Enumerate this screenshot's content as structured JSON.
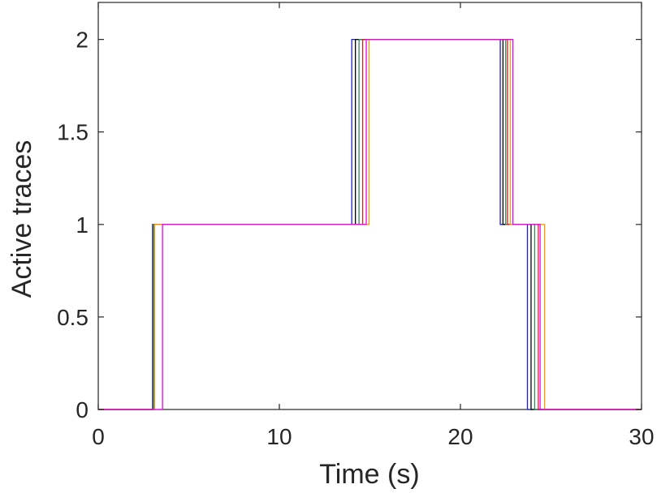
{
  "chart_data": {
    "type": "line",
    "title": "",
    "xlabel": "Time (s)",
    "ylabel": "Active traces",
    "xlim": [
      0,
      30
    ],
    "ylim": [
      0,
      2.2
    ],
    "xticks": [
      0,
      10,
      20,
      30
    ],
    "xtick_labels": [
      "0",
      "10",
      "20",
      "30"
    ],
    "yticks": [
      0,
      0.5,
      1,
      1.5,
      2
    ],
    "ytick_labels": [
      "0",
      "0.5",
      "1",
      "1.5",
      "2"
    ],
    "grid": false,
    "step": true,
    "series": [
      {
        "color": "#1f1fcc",
        "x": [
          0,
          3.0,
          14.0,
          22.2,
          23.7,
          30
        ],
        "y": [
          0,
          1,
          2,
          1,
          0,
          0
        ]
      },
      {
        "color": "#000000",
        "x": [
          0,
          3.05,
          14.2,
          22.35,
          23.9,
          30
        ],
        "y": [
          0,
          1,
          2,
          1,
          0,
          0
        ]
      },
      {
        "color": "#2e8b57",
        "x": [
          0,
          3.05,
          14.4,
          22.5,
          24.1,
          30
        ],
        "y": [
          0,
          1,
          2,
          1,
          0,
          0
        ]
      },
      {
        "color": "#cc2222",
        "x": [
          0,
          3.1,
          14.6,
          22.6,
          24.3,
          30
        ],
        "y": [
          0,
          1,
          2,
          1,
          0,
          0
        ]
      },
      {
        "color": "#ff9900",
        "x": [
          0,
          3.1,
          14.95,
          22.75,
          24.65,
          30
        ],
        "y": [
          0,
          1,
          2,
          1,
          0,
          0
        ]
      },
      {
        "color": "#ee00ee",
        "x": [
          0,
          3.55,
          14.8,
          22.9,
          24.4,
          30
        ],
        "y": [
          0,
          1,
          2,
          1,
          0,
          0
        ]
      }
    ]
  }
}
